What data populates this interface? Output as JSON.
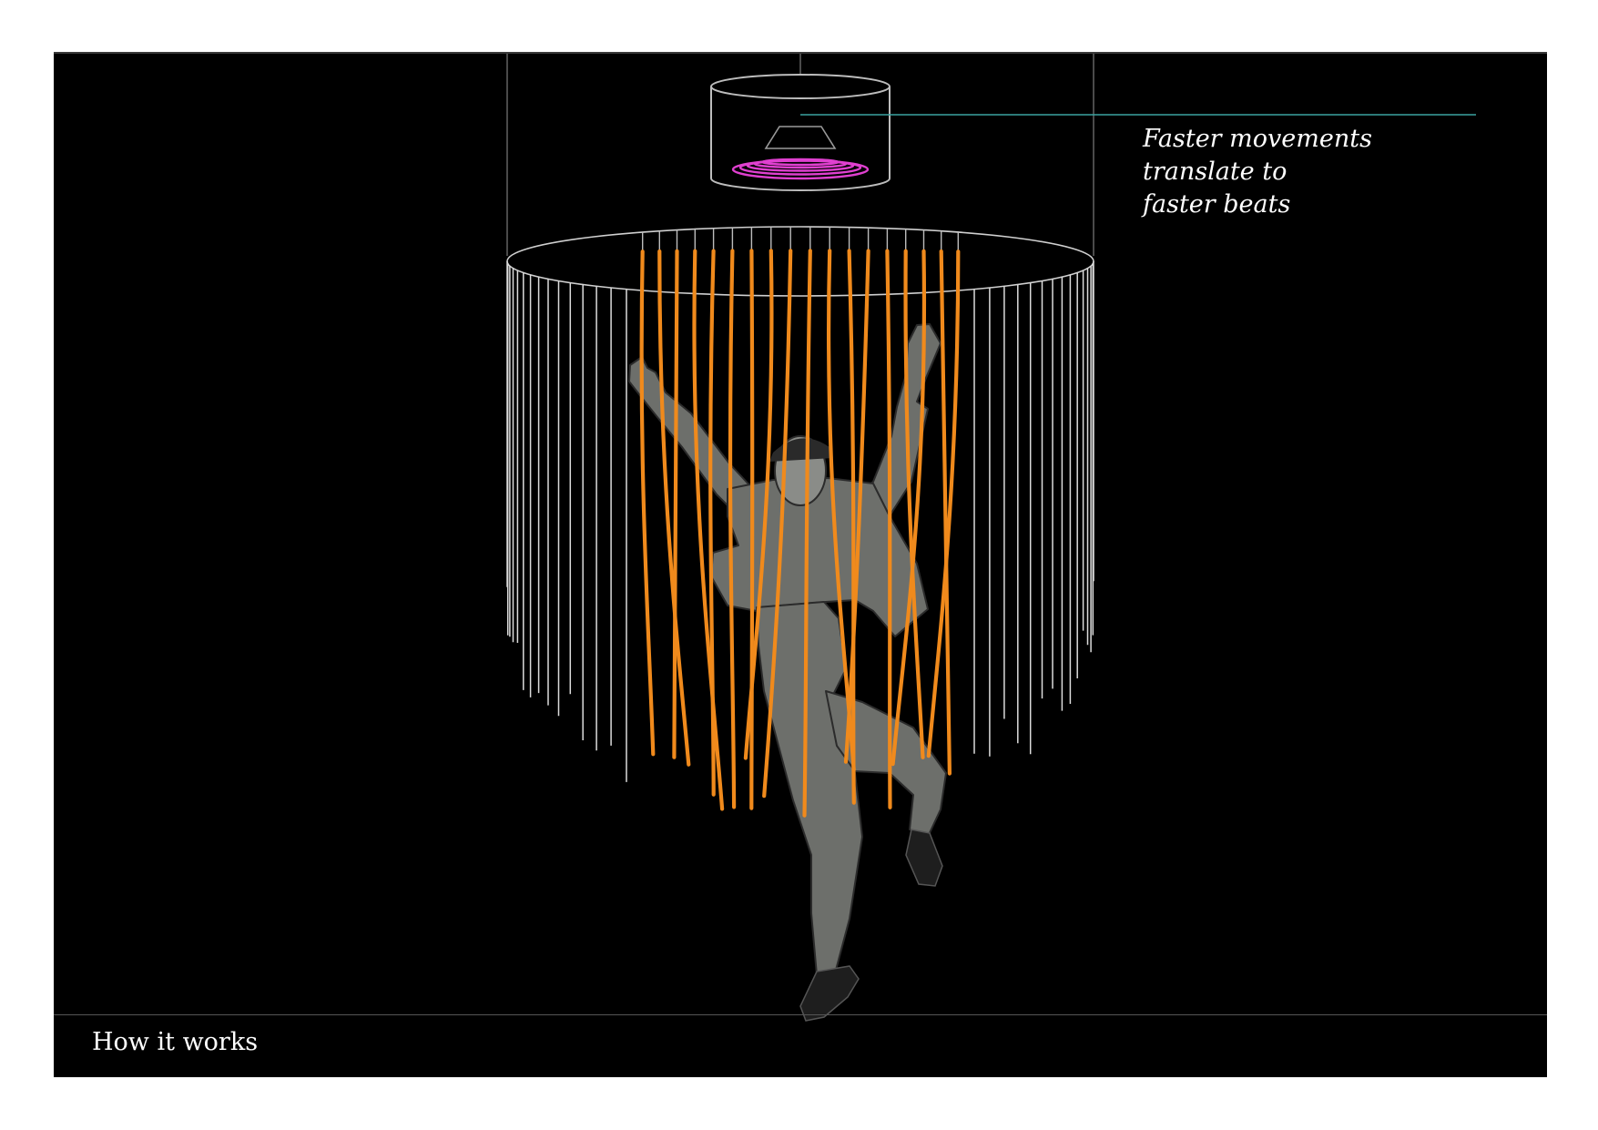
{
  "callout": {
    "lines": [
      "Faster movements",
      "translate to",
      "faster beats"
    ]
  },
  "footer": {
    "title": "How it works"
  },
  "colors": {
    "background": "#000000",
    "strand_active": "#f08a1c",
    "strand_idle": "#d8d8d8",
    "speaker_glow": "#e040d0",
    "leader_line": "#3aa3a0",
    "outline": "#bdbdbd"
  },
  "icons": {
    "speaker": "speaker-icon",
    "dancer": "dancer-figure"
  }
}
